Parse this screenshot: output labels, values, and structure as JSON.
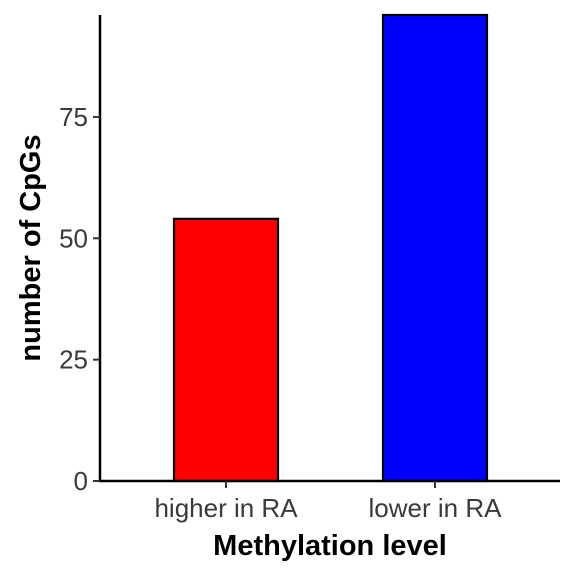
{
  "chart_data": {
    "type": "bar",
    "categories": [
      "higher in RA",
      "lower in RA"
    ],
    "values": [
      54,
      96
    ],
    "title": "",
    "xlabel": "Methylation level",
    "ylabel": "number of CpGs",
    "ylim": [
      0,
      96
    ],
    "yticks": [
      0,
      25,
      50,
      75
    ],
    "grid": false,
    "legend": "none",
    "colors": {
      "bars": [
        "#ff0000",
        "#0000ff"
      ],
      "bar_outline": "#000000",
      "axis": "#000000",
      "tick_text": "#3a3a3a"
    }
  }
}
